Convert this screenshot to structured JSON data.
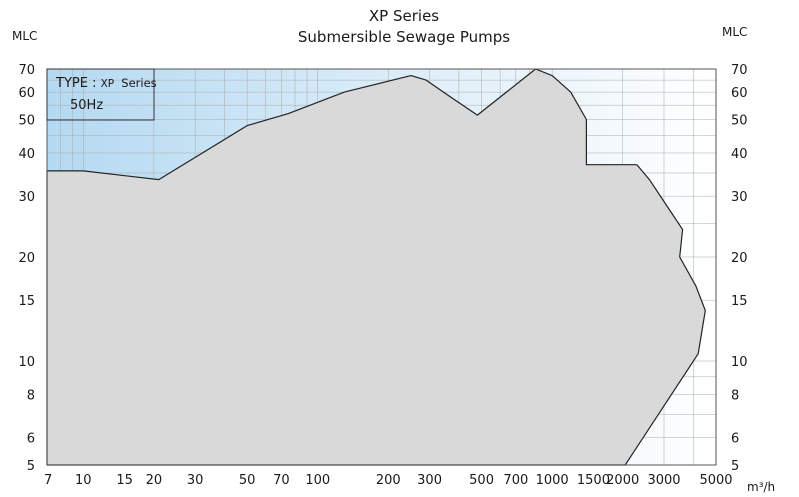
{
  "title": "XP Series",
  "subtitle": "Submersible Sewage Pumps",
  "legend": {
    "type_label": "TYPE :",
    "series_code": "XP",
    "series_word": "Series",
    "frequency": "50Hz"
  },
  "colors": {
    "envelope_fill": "#d9d9d9",
    "envelope_stroke": "#222222",
    "bg_gradient_start": "#b4d9f2",
    "bg_gradient_end": "#ffffff",
    "grid": "#aaaaaa"
  },
  "chart_data": {
    "type": "area",
    "title": "XP Series",
    "subtitle": "Submersible Sewage Pumps",
    "xscale": "log",
    "yscale": "log",
    "xlim": [
      7,
      5000
    ],
    "ylim": [
      5,
      70
    ],
    "ylabel_left": "MLC",
    "ylabel_right": "MLC",
    "xlabel": "m³/h",
    "x_ticks": [
      "7",
      "10",
      "15",
      "20",
      "30",
      "50",
      "70",
      "100",
      "200",
      "300",
      "500",
      "700",
      "1000",
      "1500",
      "2000",
      "3000",
      "5000"
    ],
    "y_ticks": [
      "5",
      "6",
      "8",
      "10",
      "15",
      "20",
      "30",
      "40",
      "50",
      "60",
      "70"
    ],
    "grid": true,
    "legend_position": "top-left",
    "series": [
      {
        "name": "XP Series",
        "envelope": [
          [
            7,
            5
          ],
          [
            7,
            35.5
          ],
          [
            10,
            35.5
          ],
          [
            21,
            33.5
          ],
          [
            50,
            48
          ],
          [
            75,
            52
          ],
          [
            130,
            60
          ],
          [
            250,
            67
          ],
          [
            290,
            65
          ],
          [
            370,
            58
          ],
          [
            480,
            51.5
          ],
          [
            850,
            70
          ],
          [
            1000,
            67
          ],
          [
            1200,
            60
          ],
          [
            1400,
            50
          ],
          [
            1400,
            37
          ],
          [
            2300,
            37
          ],
          [
            2600,
            33.5
          ],
          [
            3100,
            28
          ],
          [
            3600,
            24
          ],
          [
            3500,
            20
          ],
          [
            4100,
            16.5
          ],
          [
            4500,
            14
          ],
          [
            4200,
            10.5
          ],
          [
            2050,
            5
          ]
        ]
      }
    ]
  }
}
